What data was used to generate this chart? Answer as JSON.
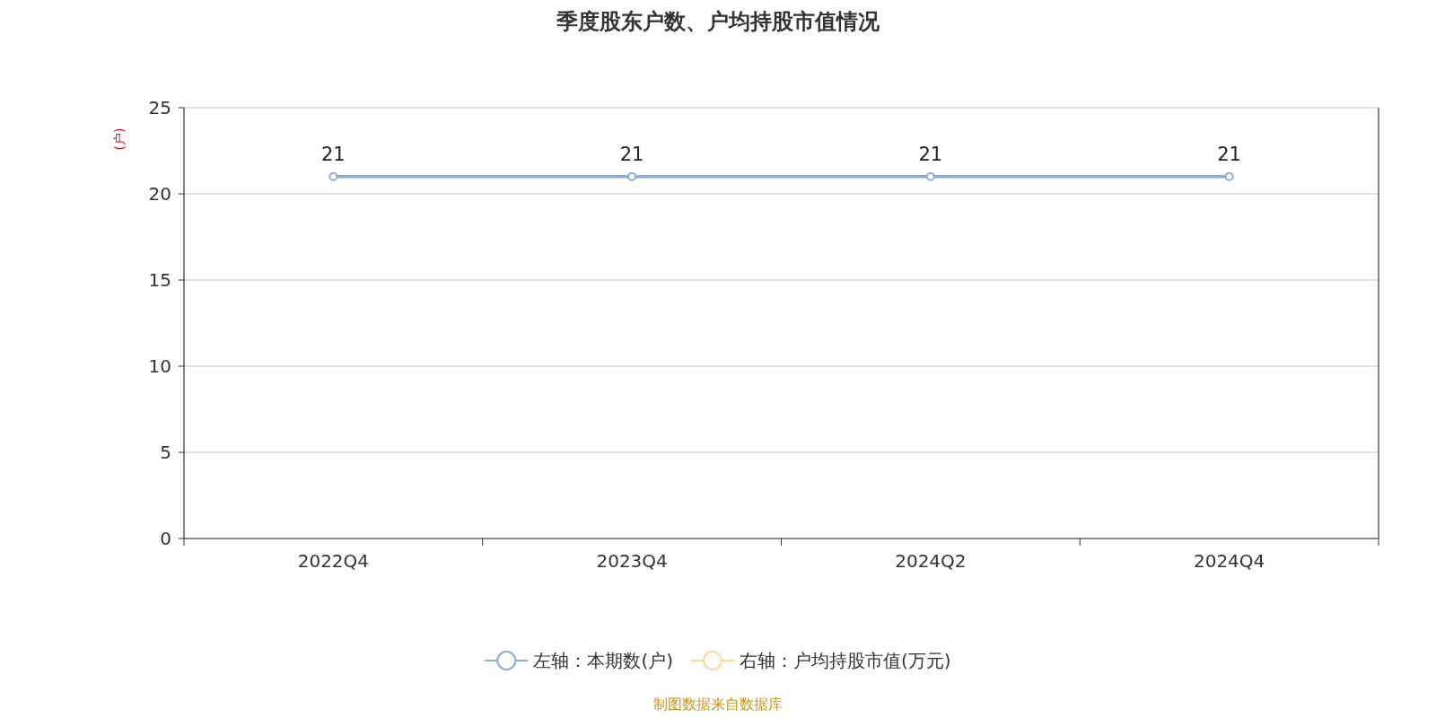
{
  "chart_data": {
    "type": "line",
    "title": "季度股东户数、户均持股市值情况",
    "ylabel": "(户)",
    "categories": [
      "2022Q4",
      "2023Q4",
      "2024Q2",
      "2024Q4"
    ],
    "series": [
      {
        "name": "左轴：本期数(户)",
        "color": "#8eacd9",
        "values": [
          21,
          21,
          21,
          21
        ]
      },
      {
        "name": "右轴：户均持股市值(万元)",
        "color": "#fcd9a0",
        "values": [
          null,
          null,
          null,
          null
        ],
        "axis": "y2"
      }
    ],
    "ylim": [
      0,
      25
    ],
    "yticks": [
      0,
      5,
      10,
      15,
      20,
      25
    ],
    "grid": "y",
    "legend": "bottom",
    "marker": "circle",
    "data_labels": true,
    "annotations": [
      "制图数据来自数据库"
    ]
  }
}
